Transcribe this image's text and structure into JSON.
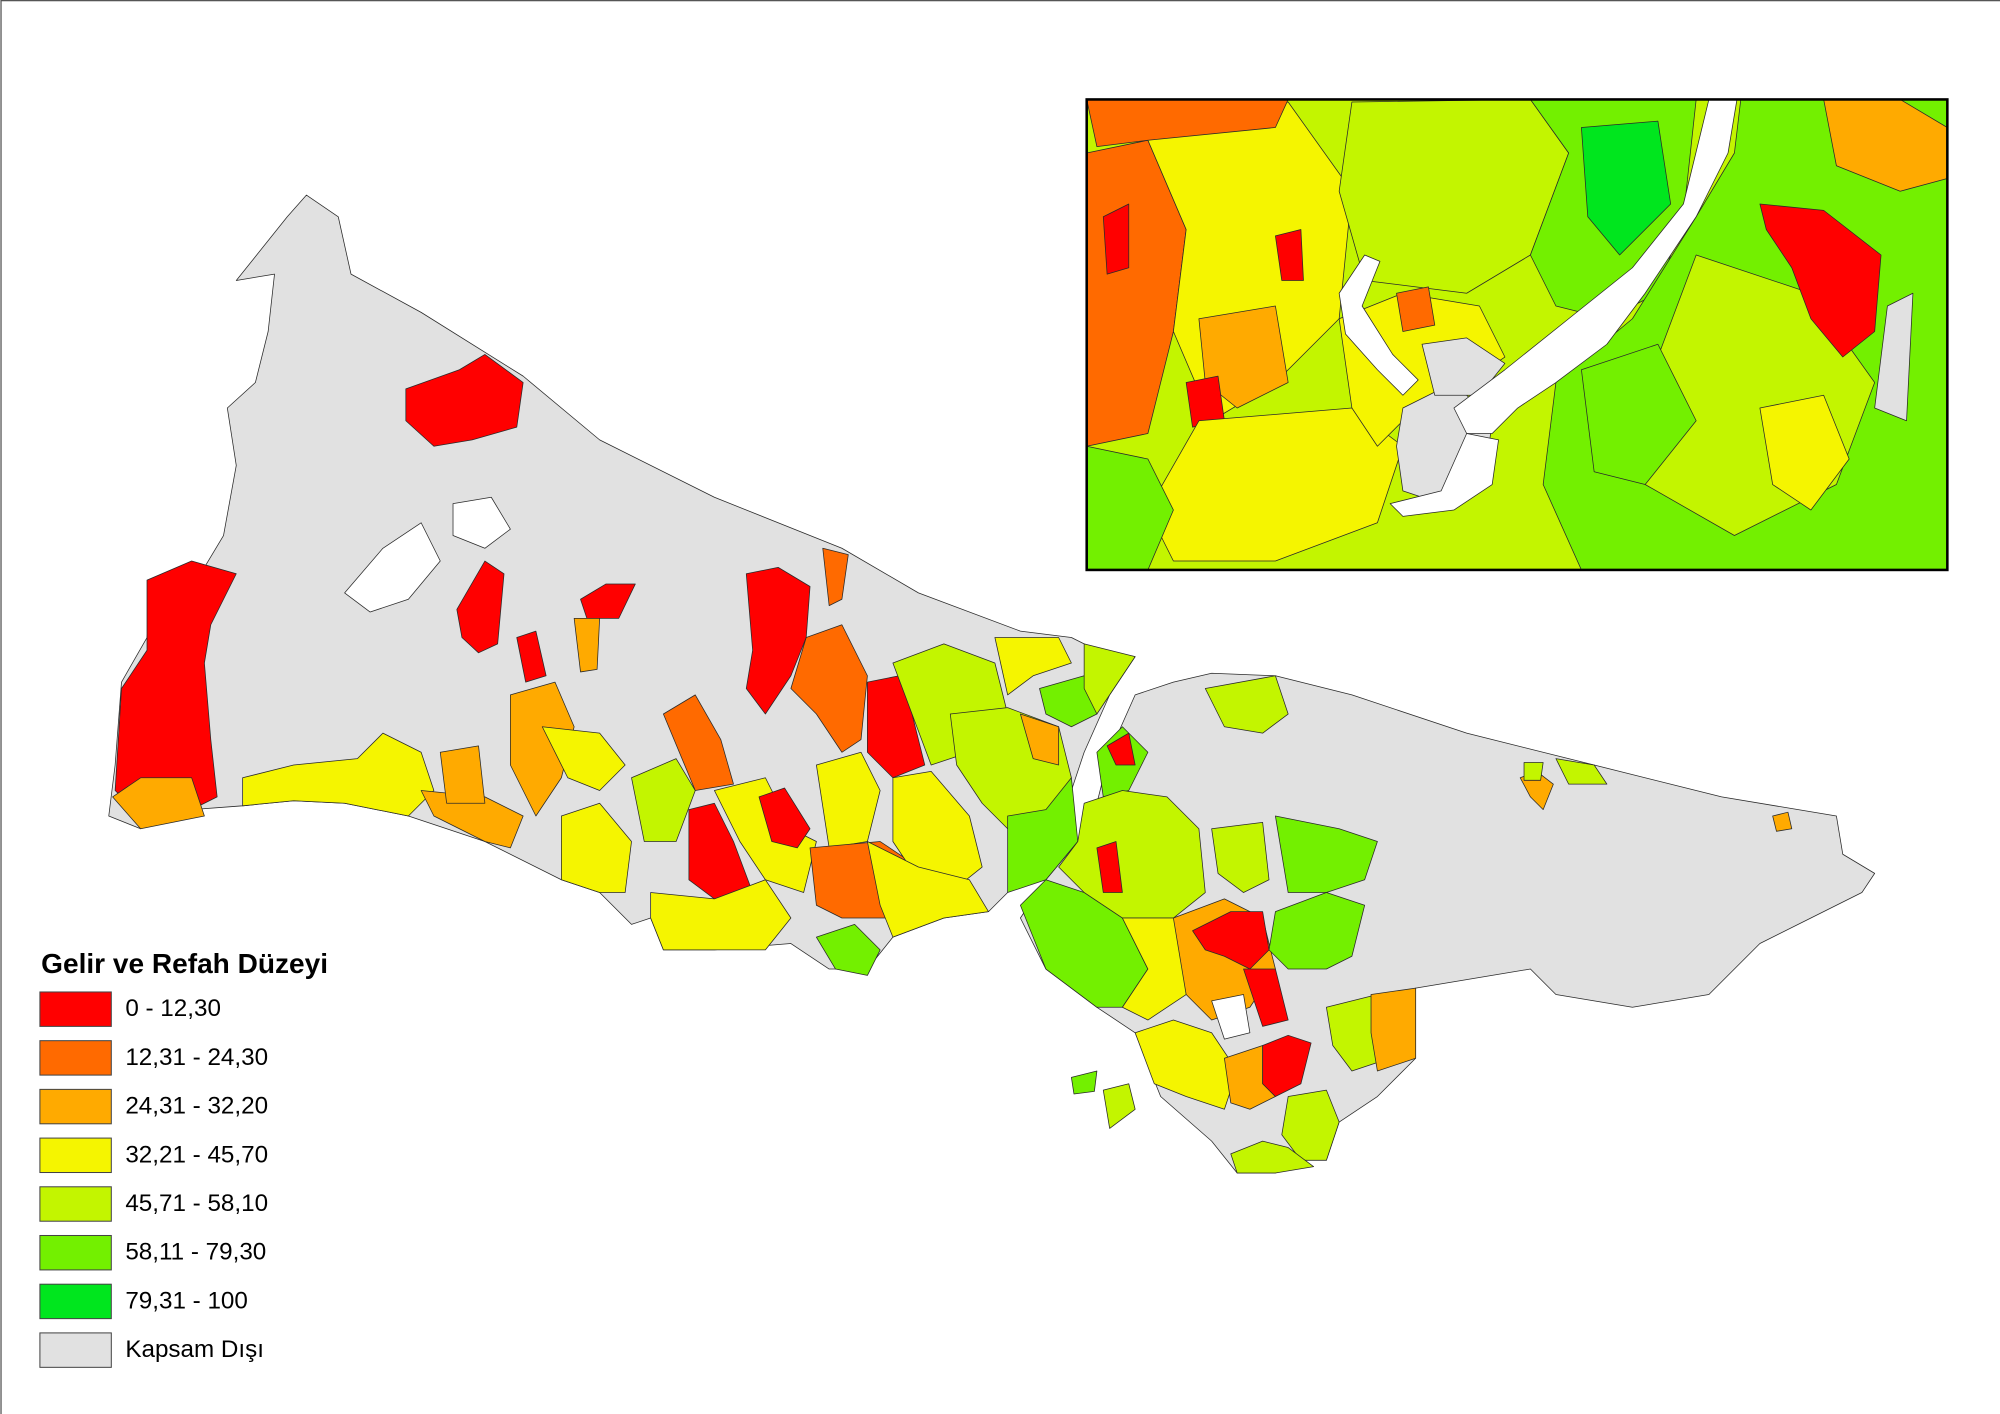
{
  "legend": {
    "title": "Gelir ve Refah Düzeyi",
    "items": [
      {
        "label": "0 - 12,30",
        "color": "#ff0000"
      },
      {
        "label": "12,31 - 24,30",
        "color": "#ff6a00"
      },
      {
        "label": "24,31 - 32,20",
        "color": "#ffaa00"
      },
      {
        "label": "32,21 - 45,70",
        "color": "#f5f500"
      },
      {
        "label": "45,71 - 58,10",
        "color": "#c3f500"
      },
      {
        "label": "58,11 - 79,30",
        "color": "#73f000"
      },
      {
        "label": "79,31 - 100",
        "color": "#00e61e"
      },
      {
        "label": "Kapsam Dışı",
        "color": "#e1e1e1"
      }
    ]
  }
}
